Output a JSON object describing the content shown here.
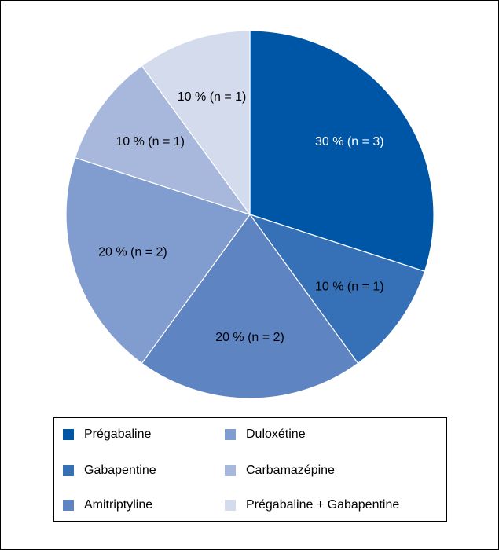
{
  "chart_data": {
    "type": "pie",
    "slices": [
      {
        "name": "Prégabaline",
        "value": 30,
        "label": "30 % (n = 3)",
        "color": "#0056a6",
        "label_color": "#ffffff"
      },
      {
        "name": "Gabapentine",
        "value": 10,
        "label": "10 % (n = 1)",
        "color": "#3670b7",
        "label_color": "#000000"
      },
      {
        "name": "Amitriptyline",
        "value": 20,
        "label": "20 % (n = 2)",
        "color": "#5f84c2",
        "label_color": "#000000"
      },
      {
        "name": "Duloxétine",
        "value": 20,
        "label": "20 % (n = 2)",
        "color": "#819ccf",
        "label_color": "#000000"
      },
      {
        "name": "Carbamazépine",
        "value": 10,
        "label": "10 % (n = 1)",
        "color": "#a8b8dc",
        "label_color": "#000000"
      },
      {
        "name": "Prégabaline + Gabapentine",
        "value": 10,
        "label": "10 % (n = 1)",
        "color": "#d3dbed",
        "label_color": "#000000"
      }
    ],
    "legend_placement": "bottom"
  }
}
